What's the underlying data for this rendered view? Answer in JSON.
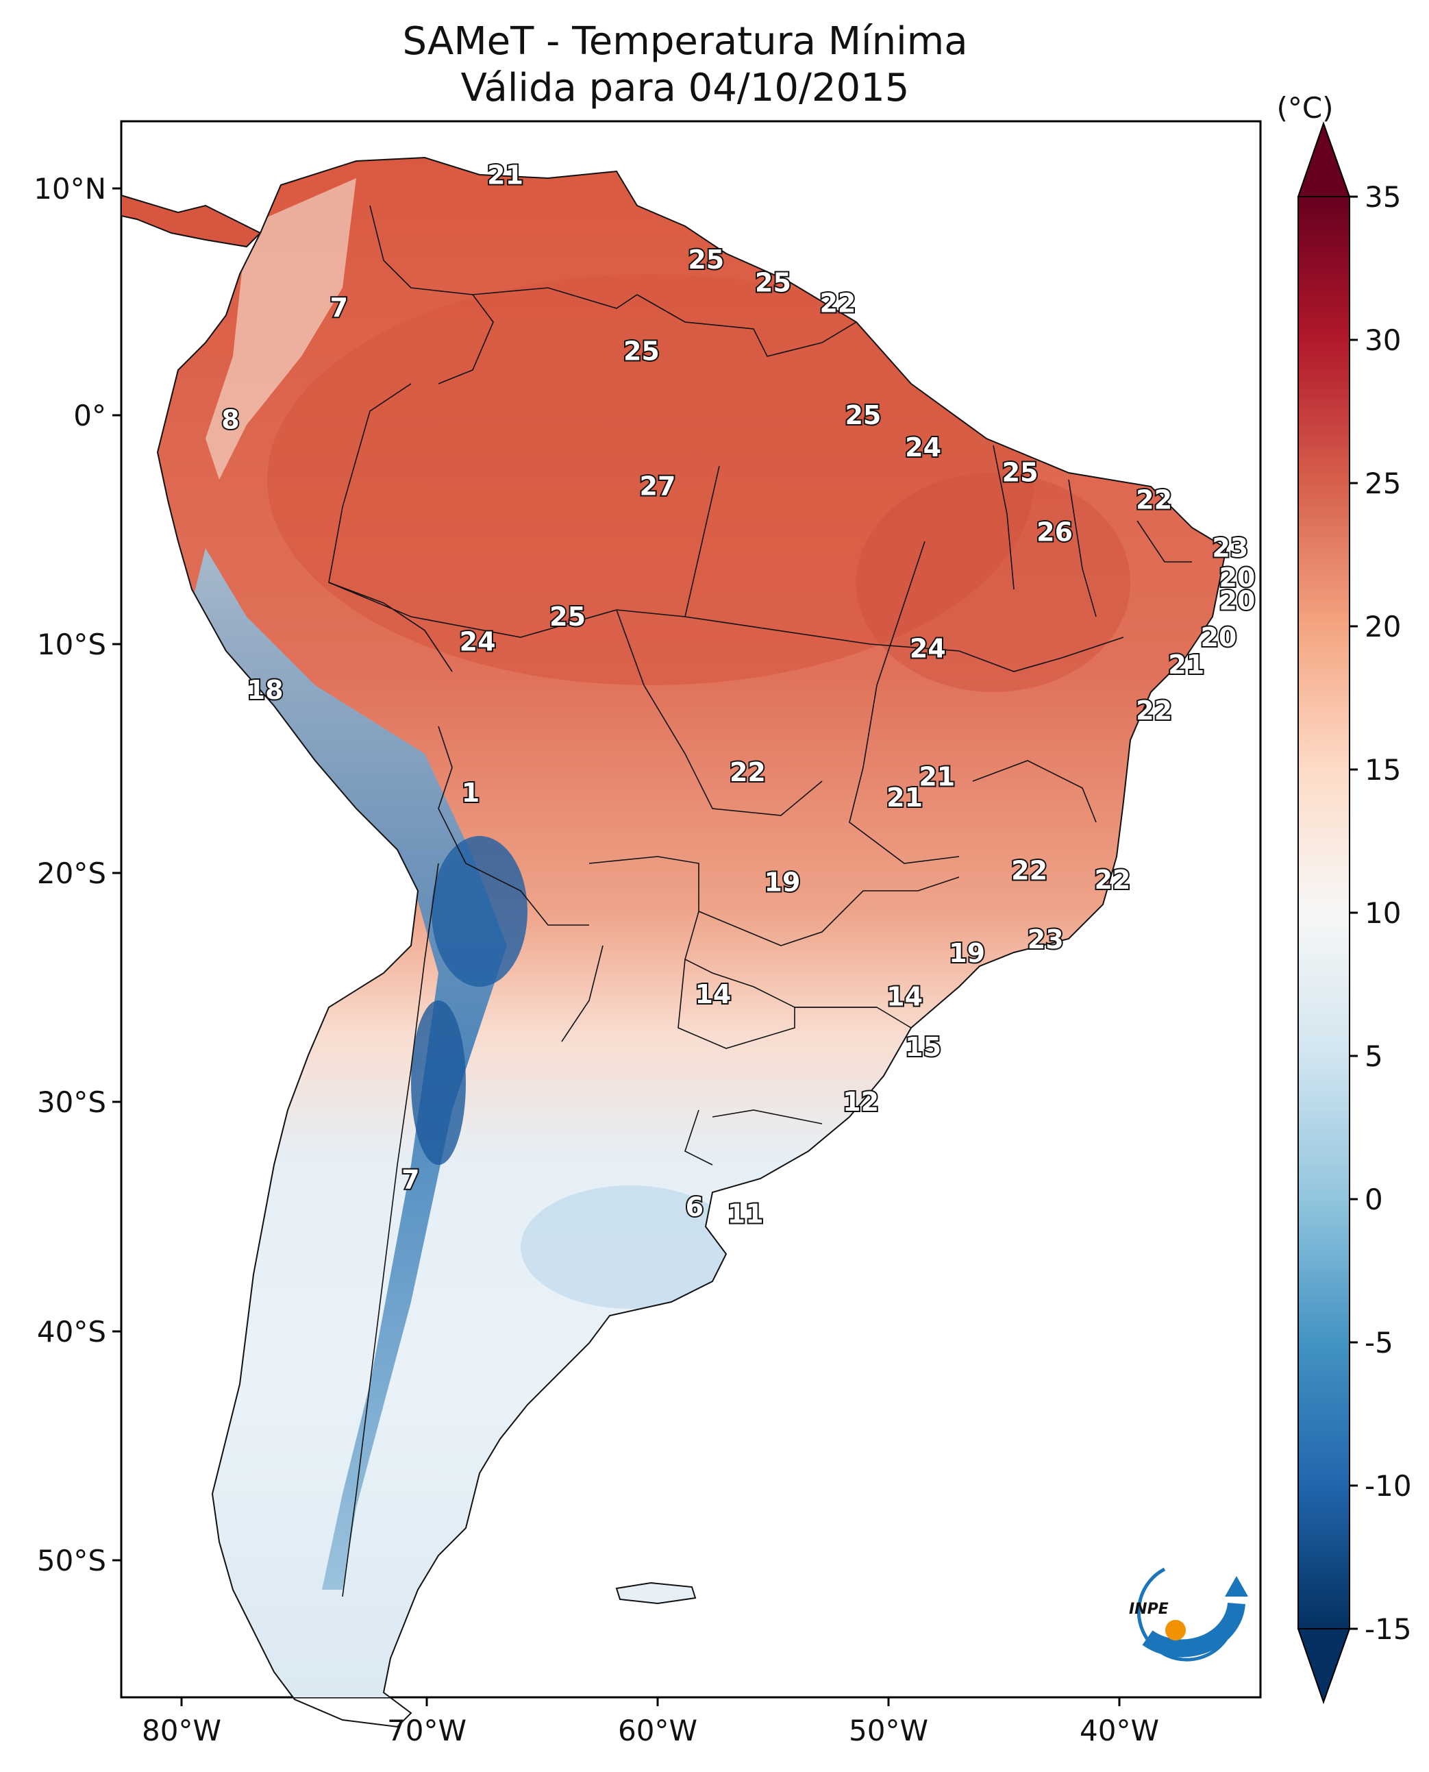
{
  "title": "SAMeT - Temperatura Mínima",
  "subtitle": "Válida para 04/10/2015",
  "colorbar": {
    "unit": "(°C)",
    "ticks": [
      "35",
      "30",
      "25",
      "20",
      "15",
      "10",
      "5",
      "0",
      "-5",
      "-10",
      "-15"
    ],
    "colors": [
      "#67001f",
      "#b2182b",
      "#d6604d",
      "#f4a582",
      "#fddbc7",
      "#f7f7f7",
      "#d1e5f0",
      "#92c5de",
      "#4393c3",
      "#2166ac",
      "#053061"
    ]
  },
  "axes": {
    "lon_ticks": [
      "80°W",
      "70°W",
      "60°W",
      "50°W",
      "40°W"
    ],
    "lat_ticks": [
      "10°N",
      "0°",
      "10°S",
      "20°S",
      "30°S",
      "40°S",
      "50°S"
    ]
  },
  "logo": {
    "text": "INPE"
  },
  "chart_data": {
    "type": "heatmap",
    "title": "SAMeT - Temperatura Mínima",
    "subtitle": "Válida para 04/10/2015",
    "units": "°C",
    "color_range": [
      -15,
      35
    ],
    "lon_range": [
      -83,
      -33
    ],
    "lat_range": [
      -56,
      13
    ],
    "station_values": [
      {
        "lon": -66.6,
        "lat": 10.5,
        "value": "21"
      },
      {
        "lon": -57.9,
        "lat": 6.8,
        "value": "25"
      },
      {
        "lon": -55.0,
        "lat": 5.8,
        "value": "25"
      },
      {
        "lon": -52.2,
        "lat": 4.9,
        "value": "22"
      },
      {
        "lon": -73.8,
        "lat": 4.7,
        "value": "7"
      },
      {
        "lon": -60.7,
        "lat": 2.8,
        "value": "25"
      },
      {
        "lon": -78.5,
        "lat": -0.2,
        "value": "8"
      },
      {
        "lon": -51.1,
        "lat": 0.0,
        "value": "25"
      },
      {
        "lon": -48.5,
        "lat": -1.4,
        "value": "24"
      },
      {
        "lon": -44.3,
        "lat": -2.5,
        "value": "25"
      },
      {
        "lon": -60.0,
        "lat": -3.1,
        "value": "27"
      },
      {
        "lon": -38.5,
        "lat": -3.7,
        "value": "22"
      },
      {
        "lon": -42.8,
        "lat": -5.1,
        "value": "26"
      },
      {
        "lon": -35.2,
        "lat": -5.8,
        "value": "23"
      },
      {
        "lon": -34.9,
        "lat": -7.1,
        "value": "20"
      },
      {
        "lon": -34.9,
        "lat": -8.1,
        "value": "20"
      },
      {
        "lon": -63.9,
        "lat": -8.8,
        "value": "25"
      },
      {
        "lon": -35.7,
        "lat": -9.7,
        "value": "20"
      },
      {
        "lon": -67.8,
        "lat": -9.9,
        "value": "24"
      },
      {
        "lon": -48.3,
        "lat": -10.2,
        "value": "24"
      },
      {
        "lon": -37.1,
        "lat": -10.9,
        "value": "21"
      },
      {
        "lon": -77.0,
        "lat": -12.0,
        "value": "18"
      },
      {
        "lon": -38.5,
        "lat": -12.9,
        "value": "22"
      },
      {
        "lon": -56.1,
        "lat": -15.6,
        "value": "22"
      },
      {
        "lon": -47.9,
        "lat": -15.8,
        "value": "21"
      },
      {
        "lon": -49.3,
        "lat": -16.7,
        "value": "21"
      },
      {
        "lon": -68.1,
        "lat": -16.5,
        "value": "1"
      },
      {
        "lon": -54.6,
        "lat": -20.4,
        "value": "19"
      },
      {
        "lon": -43.9,
        "lat": -19.9,
        "value": "22"
      },
      {
        "lon": -40.3,
        "lat": -20.3,
        "value": "22"
      },
      {
        "lon": -43.2,
        "lat": -22.9,
        "value": "23"
      },
      {
        "lon": -46.6,
        "lat": -23.5,
        "value": "19"
      },
      {
        "lon": -57.6,
        "lat": -25.3,
        "value": "14"
      },
      {
        "lon": -49.3,
        "lat": -25.4,
        "value": "14"
      },
      {
        "lon": -48.5,
        "lat": -27.6,
        "value": "15"
      },
      {
        "lon": -51.2,
        "lat": -30.0,
        "value": "12"
      },
      {
        "lon": -70.7,
        "lat": -33.4,
        "value": "7"
      },
      {
        "lon": -58.4,
        "lat": -34.6,
        "value": "6"
      },
      {
        "lon": -56.2,
        "lat": -34.9,
        "value": "11"
      }
    ]
  }
}
